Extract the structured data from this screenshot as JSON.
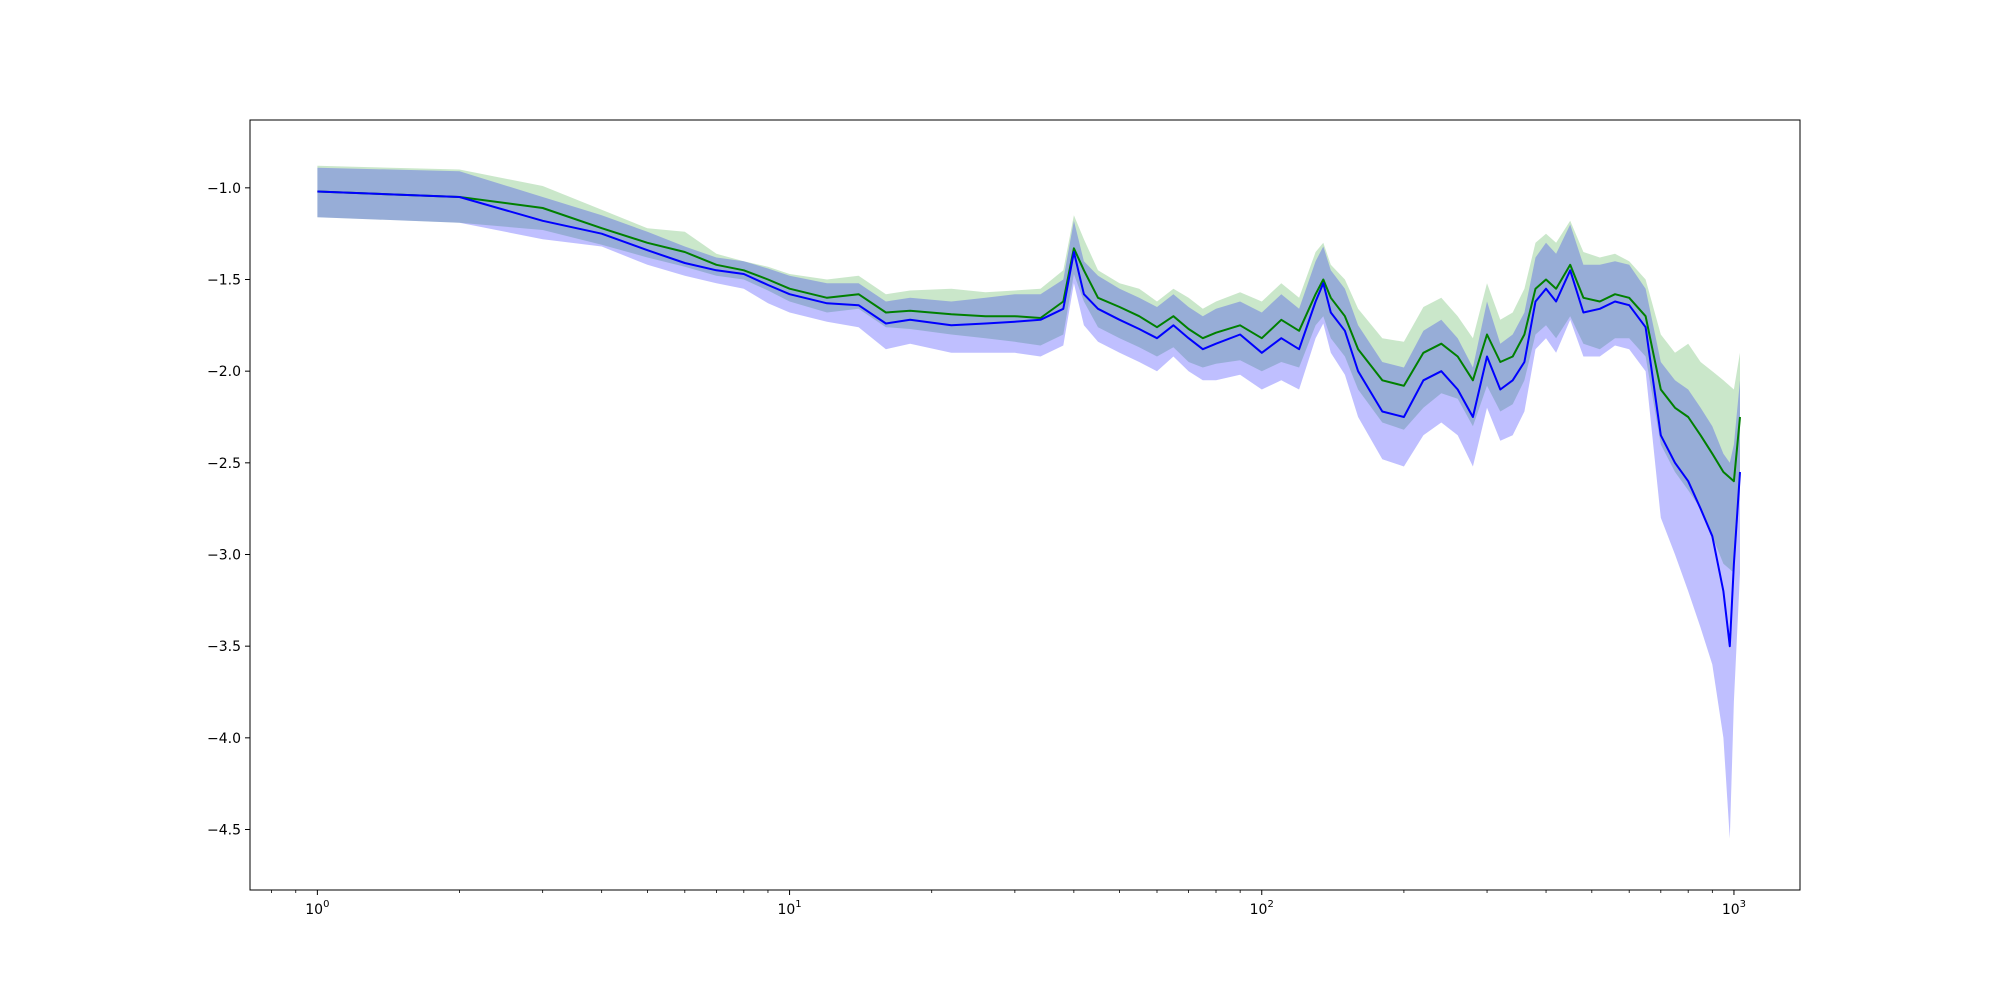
{
  "chart_data": {
    "type": "line",
    "title": "",
    "xlabel": "",
    "ylabel": "",
    "x_scale": "log",
    "xlim": [
      0.72,
      1380
    ],
    "ylim": [
      -4.83,
      -0.63
    ],
    "grid": false,
    "legend": "none",
    "x_ticks": [
      {
        "base": "10",
        "exp": "0",
        "value": 1
      },
      {
        "base": "10",
        "exp": "1",
        "value": 10
      },
      {
        "base": "10",
        "exp": "2",
        "value": 100
      },
      {
        "base": "10",
        "exp": "3",
        "value": 1000
      }
    ],
    "y_ticks": [
      {
        "label": "−1.0",
        "value": -1.0
      },
      {
        "label": "−1.5",
        "value": -1.5
      },
      {
        "label": "−2.0",
        "value": -2.0
      },
      {
        "label": "−2.5",
        "value": -2.5
      },
      {
        "label": "−3.0",
        "value": -3.0
      },
      {
        "label": "−3.5",
        "value": -3.5
      },
      {
        "label": "−4.0",
        "value": -4.0
      },
      {
        "label": "−4.5",
        "value": -4.5
      }
    ],
    "series": [
      {
        "color": "#008000",
        "band_color": "#2ca02c",
        "points": [
          [
            1,
            -1.02,
            -1.16,
            -0.88
          ],
          [
            2,
            -1.05,
            -1.19,
            -0.9
          ],
          [
            3,
            -1.11,
            -1.23,
            -0.99
          ],
          [
            4,
            -1.22,
            -1.31,
            -1.12
          ],
          [
            5,
            -1.3,
            -1.38,
            -1.22
          ],
          [
            6,
            -1.35,
            -1.43,
            -1.24
          ],
          [
            7,
            -1.42,
            -1.48,
            -1.36
          ],
          [
            8,
            -1.45,
            -1.5,
            -1.4
          ],
          [
            9,
            -1.5,
            -1.56,
            -1.43
          ],
          [
            10,
            -1.55,
            -1.62,
            -1.47
          ],
          [
            12,
            -1.6,
            -1.68,
            -1.5
          ],
          [
            14,
            -1.58,
            -1.66,
            -1.48
          ],
          [
            16,
            -1.68,
            -1.76,
            -1.58
          ],
          [
            18,
            -1.67,
            -1.77,
            -1.56
          ],
          [
            22,
            -1.69,
            -1.8,
            -1.55
          ],
          [
            26,
            -1.7,
            -1.82,
            -1.57
          ],
          [
            30,
            -1.7,
            -1.84,
            -1.56
          ],
          [
            34,
            -1.71,
            -1.86,
            -1.55
          ],
          [
            38,
            -1.62,
            -1.8,
            -1.45
          ],
          [
            40,
            -1.33,
            -1.47,
            -1.15
          ],
          [
            42,
            -1.45,
            -1.62,
            -1.28
          ],
          [
            45,
            -1.6,
            -1.76,
            -1.45
          ],
          [
            50,
            -1.65,
            -1.82,
            -1.52
          ],
          [
            55,
            -1.7,
            -1.87,
            -1.55
          ],
          [
            60,
            -1.76,
            -1.92,
            -1.62
          ],
          [
            65,
            -1.7,
            -1.87,
            -1.55
          ],
          [
            70,
            -1.77,
            -1.95,
            -1.6
          ],
          [
            75,
            -1.82,
            -1.98,
            -1.66
          ],
          [
            80,
            -1.79,
            -1.96,
            -1.62
          ],
          [
            90,
            -1.75,
            -1.94,
            -1.57
          ],
          [
            100,
            -1.82,
            -2.0,
            -1.62
          ],
          [
            110,
            -1.72,
            -1.95,
            -1.52
          ],
          [
            120,
            -1.78,
            -1.98,
            -1.6
          ],
          [
            130,
            -1.58,
            -1.75,
            -1.35
          ],
          [
            135,
            -1.5,
            -1.7,
            -1.3
          ],
          [
            140,
            -1.6,
            -1.82,
            -1.42
          ],
          [
            150,
            -1.7,
            -1.92,
            -1.5
          ],
          [
            160,
            -1.88,
            -2.1,
            -1.66
          ],
          [
            180,
            -2.05,
            -2.28,
            -1.82
          ],
          [
            200,
            -2.08,
            -2.32,
            -1.84
          ],
          [
            220,
            -1.9,
            -2.2,
            -1.65
          ],
          [
            240,
            -1.85,
            -2.12,
            -1.6
          ],
          [
            260,
            -1.92,
            -2.15,
            -1.7
          ],
          [
            280,
            -2.05,
            -2.3,
            -1.82
          ],
          [
            300,
            -1.8,
            -2.08,
            -1.52
          ],
          [
            320,
            -1.95,
            -2.22,
            -1.72
          ],
          [
            340,
            -1.92,
            -2.18,
            -1.68
          ],
          [
            360,
            -1.8,
            -2.05,
            -1.55
          ],
          [
            380,
            -1.55,
            -1.8,
            -1.3
          ],
          [
            400,
            -1.5,
            -1.75,
            -1.25
          ],
          [
            420,
            -1.55,
            -1.82,
            -1.3
          ],
          [
            450,
            -1.42,
            -1.7,
            -1.18
          ],
          [
            480,
            -1.6,
            -1.85,
            -1.35
          ],
          [
            520,
            -1.62,
            -1.88,
            -1.38
          ],
          [
            560,
            -1.58,
            -1.82,
            -1.36
          ],
          [
            600,
            -1.6,
            -1.82,
            -1.4
          ],
          [
            650,
            -1.7,
            -1.92,
            -1.5
          ],
          [
            700,
            -2.1,
            -2.4,
            -1.8
          ],
          [
            750,
            -2.2,
            -2.55,
            -1.9
          ],
          [
            800,
            -2.25,
            -2.65,
            -1.85
          ],
          [
            850,
            -2.35,
            -2.75,
            -1.95
          ],
          [
            900,
            -2.45,
            -2.9,
            -2.0
          ],
          [
            950,
            -2.55,
            -3.05,
            -2.05
          ],
          [
            1000,
            -2.6,
            -3.1,
            -2.1
          ],
          [
            1030,
            -2.25,
            -2.65,
            -1.9
          ]
        ]
      },
      {
        "color": "#0000ff",
        "band_color": "#0000ff",
        "points": [
          [
            1,
            -1.02,
            -1.16,
            -0.89
          ],
          [
            2,
            -1.05,
            -1.19,
            -0.91
          ],
          [
            3,
            -1.18,
            -1.28,
            -1.05
          ],
          [
            4,
            -1.25,
            -1.32,
            -1.15
          ],
          [
            5,
            -1.34,
            -1.42,
            -1.24
          ],
          [
            6,
            -1.41,
            -1.48,
            -1.32
          ],
          [
            7,
            -1.45,
            -1.52,
            -1.38
          ],
          [
            8,
            -1.47,
            -1.55,
            -1.4
          ],
          [
            9,
            -1.53,
            -1.63,
            -1.44
          ],
          [
            10,
            -1.58,
            -1.68,
            -1.48
          ],
          [
            12,
            -1.63,
            -1.73,
            -1.52
          ],
          [
            14,
            -1.64,
            -1.76,
            -1.52
          ],
          [
            16,
            -1.74,
            -1.88,
            -1.62
          ],
          [
            18,
            -1.72,
            -1.85,
            -1.6
          ],
          [
            22,
            -1.75,
            -1.9,
            -1.62
          ],
          [
            26,
            -1.74,
            -1.9,
            -1.6
          ],
          [
            30,
            -1.73,
            -1.9,
            -1.58
          ],
          [
            34,
            -1.72,
            -1.92,
            -1.58
          ],
          [
            38,
            -1.66,
            -1.86,
            -1.5
          ],
          [
            40,
            -1.35,
            -1.52,
            -1.18
          ],
          [
            42,
            -1.58,
            -1.75,
            -1.4
          ],
          [
            45,
            -1.66,
            -1.84,
            -1.48
          ],
          [
            50,
            -1.72,
            -1.9,
            -1.55
          ],
          [
            55,
            -1.77,
            -1.95,
            -1.6
          ],
          [
            60,
            -1.82,
            -2.0,
            -1.65
          ],
          [
            65,
            -1.75,
            -1.92,
            -1.58
          ],
          [
            70,
            -1.82,
            -2.0,
            -1.65
          ],
          [
            75,
            -1.88,
            -2.05,
            -1.7
          ],
          [
            80,
            -1.85,
            -2.05,
            -1.66
          ],
          [
            90,
            -1.8,
            -2.02,
            -1.62
          ],
          [
            100,
            -1.9,
            -2.1,
            -1.68
          ],
          [
            110,
            -1.82,
            -2.05,
            -1.58
          ],
          [
            120,
            -1.88,
            -2.1,
            -1.66
          ],
          [
            130,
            -1.62,
            -1.82,
            -1.4
          ],
          [
            135,
            -1.52,
            -1.74,
            -1.32
          ],
          [
            140,
            -1.68,
            -1.9,
            -1.45
          ],
          [
            150,
            -1.78,
            -2.02,
            -1.55
          ],
          [
            160,
            -2.0,
            -2.25,
            -1.75
          ],
          [
            180,
            -2.22,
            -2.48,
            -1.95
          ],
          [
            200,
            -2.25,
            -2.52,
            -1.98
          ],
          [
            220,
            -2.05,
            -2.35,
            -1.78
          ],
          [
            240,
            -2.0,
            -2.28,
            -1.72
          ],
          [
            260,
            -2.1,
            -2.35,
            -1.82
          ],
          [
            280,
            -2.25,
            -2.52,
            -1.98
          ],
          [
            300,
            -1.92,
            -2.2,
            -1.62
          ],
          [
            320,
            -2.1,
            -2.38,
            -1.85
          ],
          [
            340,
            -2.05,
            -2.35,
            -1.8
          ],
          [
            360,
            -1.95,
            -2.22,
            -1.68
          ],
          [
            380,
            -1.62,
            -1.88,
            -1.38
          ],
          [
            400,
            -1.55,
            -1.82,
            -1.3
          ],
          [
            420,
            -1.62,
            -1.9,
            -1.36
          ],
          [
            450,
            -1.45,
            -1.72,
            -1.2
          ],
          [
            480,
            -1.68,
            -1.92,
            -1.42
          ],
          [
            520,
            -1.66,
            -1.92,
            -1.42
          ],
          [
            560,
            -1.62,
            -1.86,
            -1.4
          ],
          [
            600,
            -1.64,
            -1.88,
            -1.42
          ],
          [
            650,
            -1.76,
            -2.0,
            -1.55
          ],
          [
            700,
            -2.35,
            -2.8,
            -1.95
          ],
          [
            750,
            -2.5,
            -3.0,
            -2.05
          ],
          [
            800,
            -2.6,
            -3.2,
            -2.1
          ],
          [
            850,
            -2.75,
            -3.4,
            -2.2
          ],
          [
            900,
            -2.9,
            -3.6,
            -2.3
          ],
          [
            950,
            -3.2,
            -4.0,
            -2.45
          ],
          [
            980,
            -3.5,
            -4.55,
            -2.5
          ],
          [
            1000,
            -3.05,
            -3.8,
            -2.4
          ],
          [
            1030,
            -2.55,
            -3.1,
            -2.05
          ]
        ]
      }
    ]
  }
}
